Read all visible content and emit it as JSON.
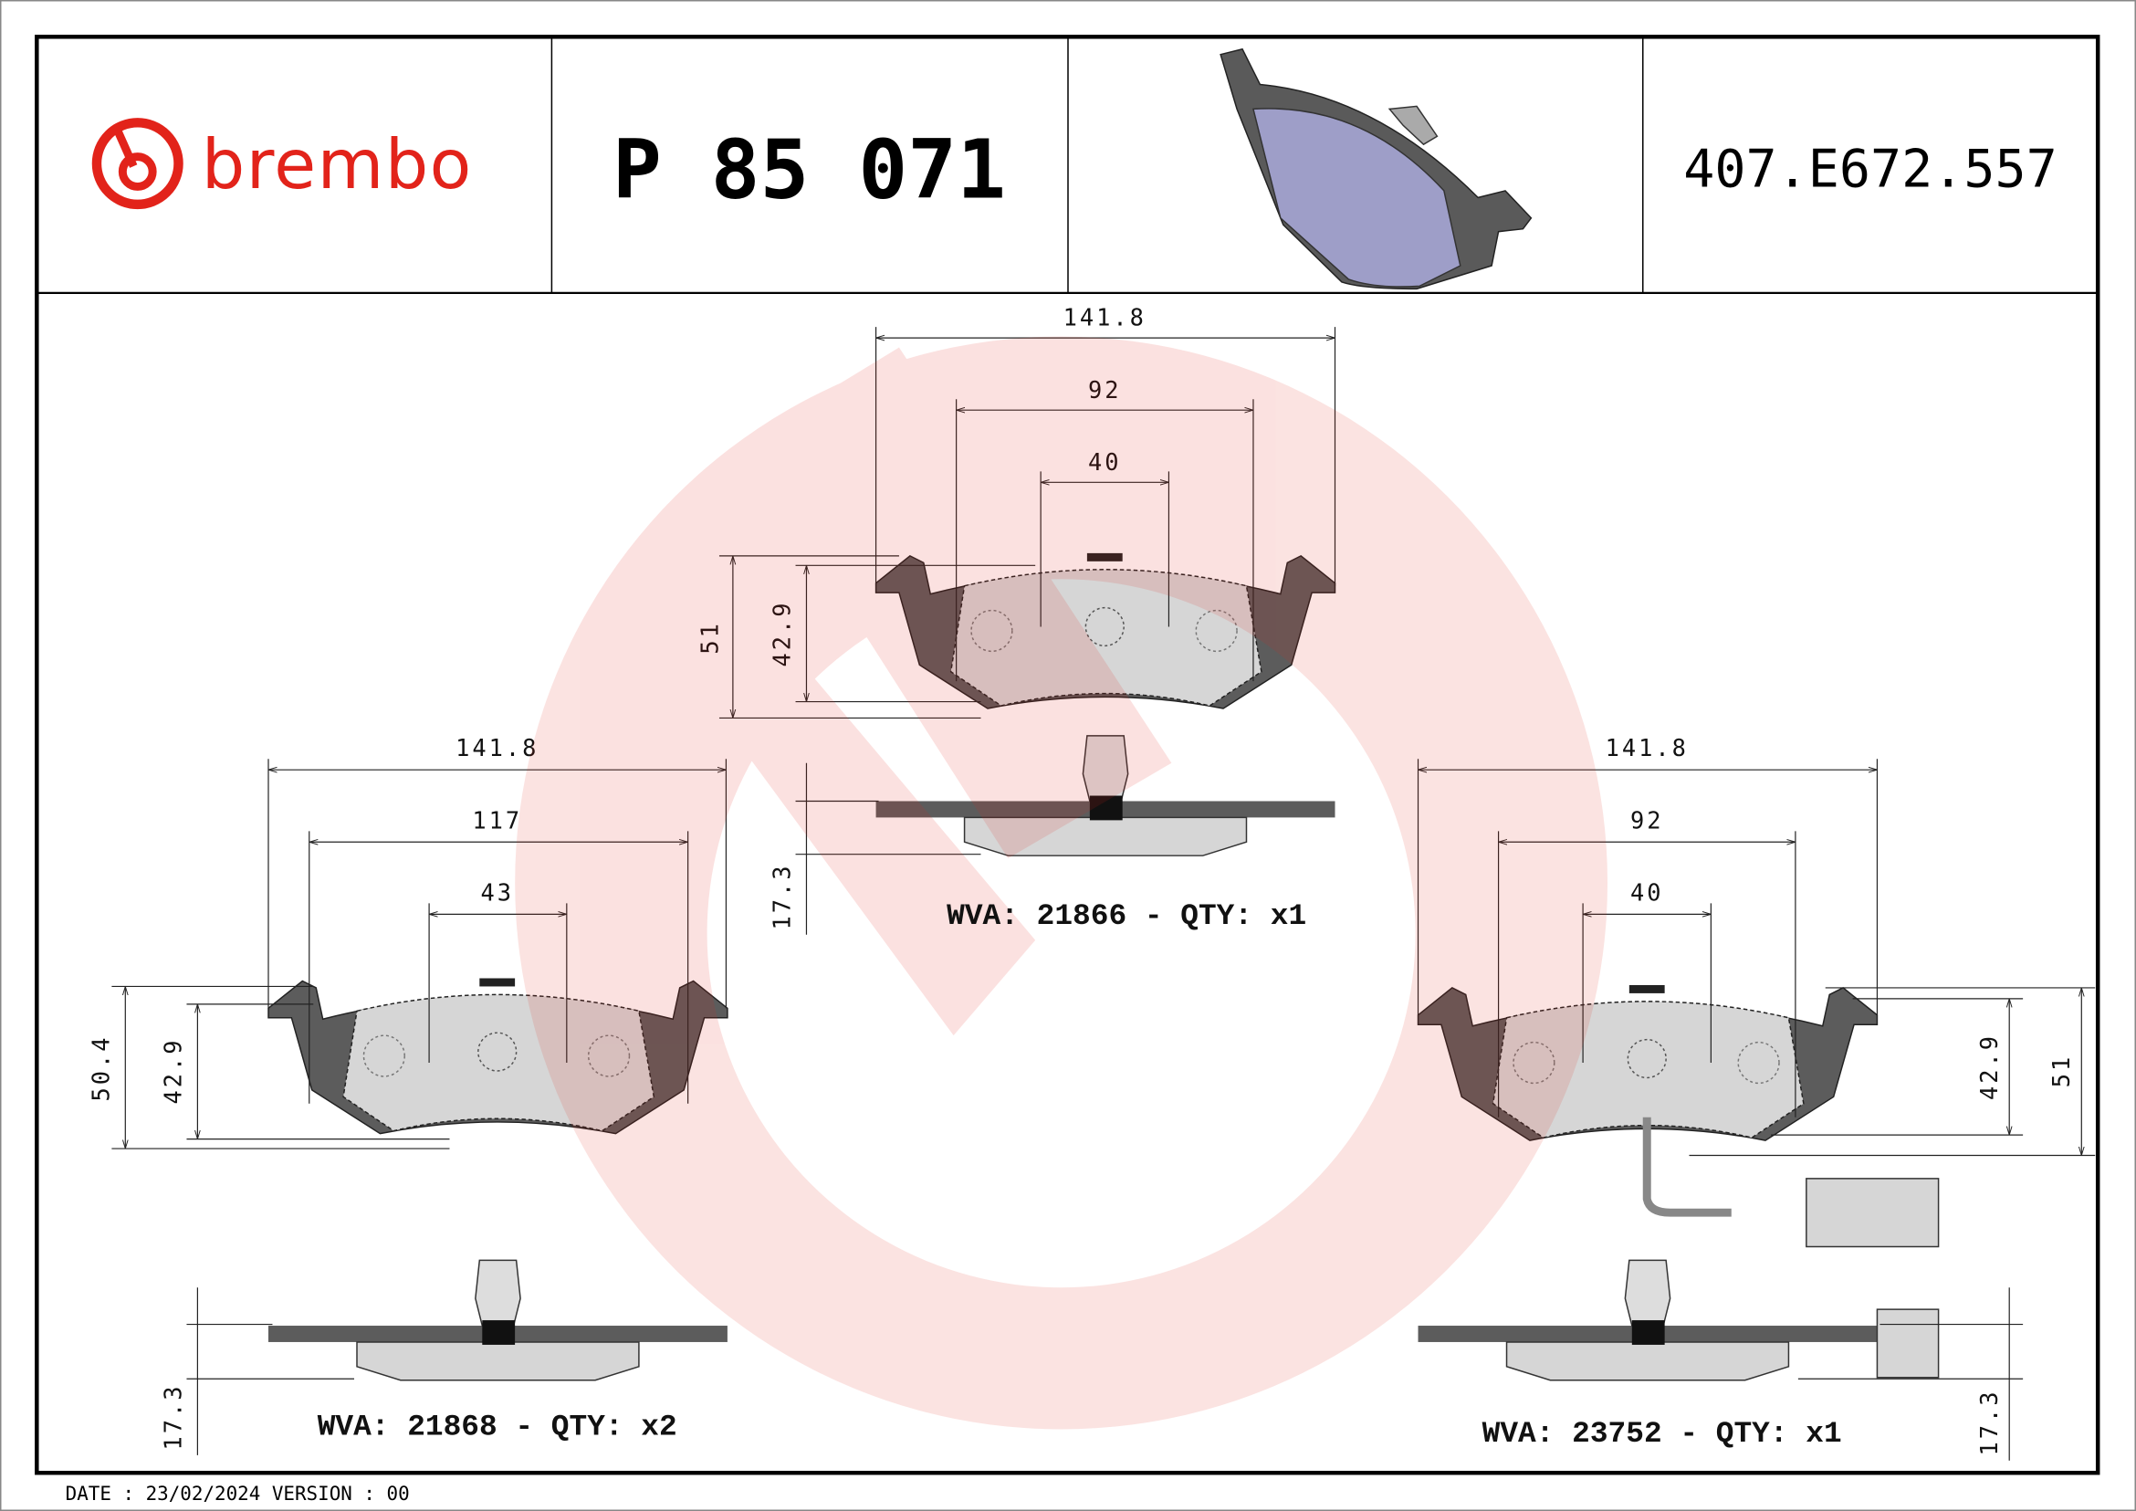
{
  "header": {
    "brand": "brembo",
    "part_number": "P 85 071",
    "reference": "407.E672.557"
  },
  "colors": {
    "brand_red": "#e2231a",
    "plate": "#5c5c5c",
    "friction": "#d6d6d6",
    "render_pad": "#9e9ec8"
  },
  "drawings": [
    {
      "id": "top",
      "dims": {
        "width": "141.8",
        "inner": "92",
        "center": "40",
        "height": "51",
        "friction_height": "42.9",
        "thickness": "17.3"
      },
      "label": "WVA: 21866 - QTY: x1"
    },
    {
      "id": "left",
      "dims": {
        "width": "141.8",
        "inner": "117",
        "center": "43",
        "height": "50.4",
        "friction_height": "42.9",
        "thickness": "17.3"
      },
      "label": "WVA: 21868 - QTY: x2"
    },
    {
      "id": "right",
      "dims": {
        "width": "141.8",
        "inner": "92",
        "center": "40",
        "height": "51",
        "friction_height": "42.9",
        "thickness": "17.3"
      },
      "label": "WVA: 23752 - QTY: x1"
    }
  ],
  "footer": "DATE : 23/02/2024 VERSION : 00"
}
